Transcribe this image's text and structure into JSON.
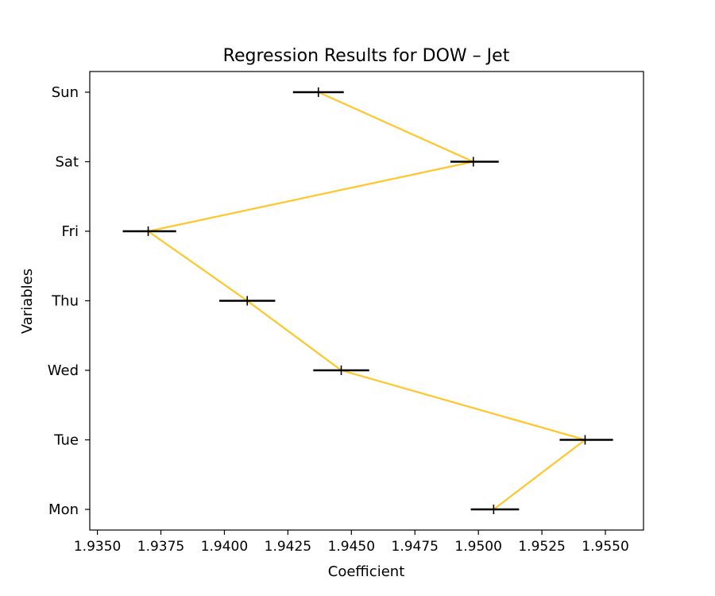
{
  "chart_data": {
    "type": "scatter",
    "title": "Regression Results for DOW – Jet",
    "xlabel": "Coefficient",
    "ylabel": "Variables",
    "xlim": [
      1.9347,
      1.9565
    ],
    "x_ticks": [
      1.935,
      1.9375,
      1.94,
      1.9425,
      1.945,
      1.9475,
      1.95,
      1.9525,
      1.955
    ],
    "x_tick_labels": [
      "1.9350",
      "1.9375",
      "1.9400",
      "1.9425",
      "1.9450",
      "1.9475",
      "1.9500",
      "1.9525",
      "1.9550"
    ],
    "categories": [
      "Mon",
      "Tue",
      "Wed",
      "Thu",
      "Fri",
      "Sat",
      "Sun"
    ],
    "series": [
      {
        "values": [
          1.9506,
          1.9542,
          1.9446,
          1.9409,
          1.937,
          1.9498,
          1.9437
        ],
        "ci_low": [
          1.9497,
          1.9532,
          1.9435,
          1.9398,
          1.936,
          1.9489,
          1.9427
        ],
        "ci_high": [
          1.9516,
          1.9553,
          1.9457,
          1.942,
          1.9381,
          1.9508,
          1.9447
        ],
        "line_color": "#ffc629",
        "errorbar_color": "#000000"
      }
    ],
    "grid": false,
    "legend": "none"
  }
}
